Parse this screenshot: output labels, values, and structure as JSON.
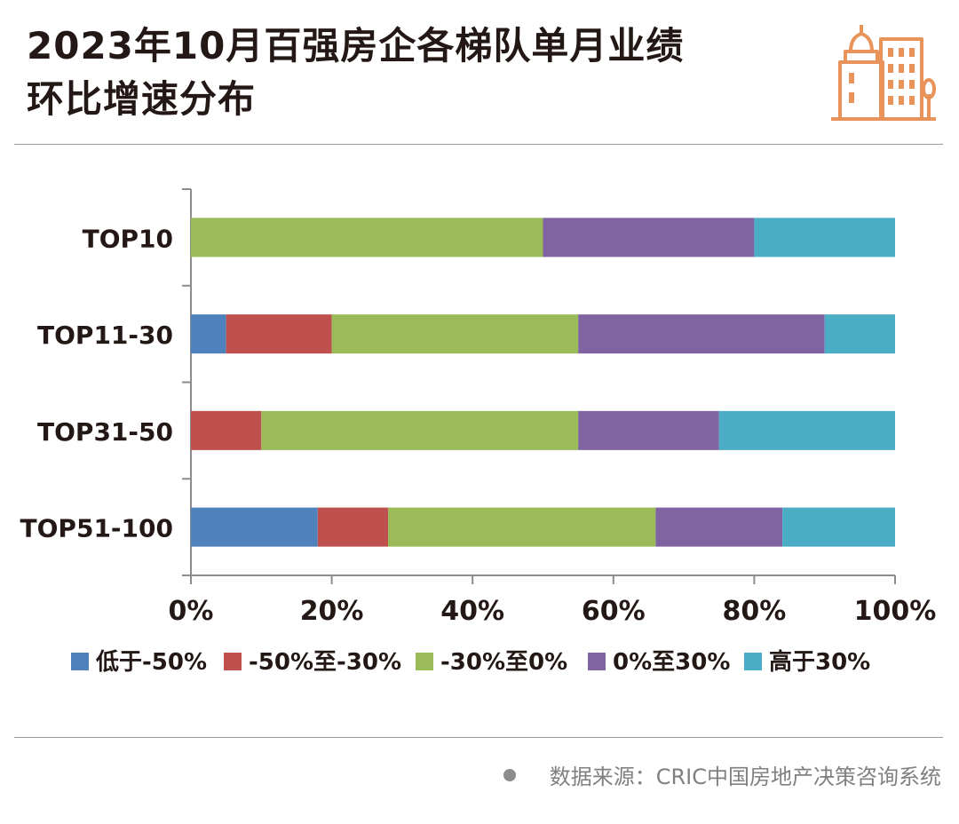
{
  "header": {
    "title_line1": "2023年10月百强房企各梯队单月业绩",
    "title_line2": "环比增速分布",
    "logo_icon": "buildings-icon"
  },
  "footer": {
    "source": "数据来源：CRIC中国房地产决策咨询系统"
  },
  "chart_data": {
    "type": "bar",
    "orientation": "horizontal",
    "stacked": true,
    "title": "2023年10月百强房企各梯队单月业绩环比增速分布",
    "categories": [
      "TOP10",
      "TOP11-30",
      "TOP31-50",
      "TOP51-100"
    ],
    "series": [
      {
        "name": "低于-50%",
        "color": "#4f81bd",
        "values": [
          0,
          5,
          0,
          18
        ]
      },
      {
        "name": "-50%至-30%",
        "color": "#c0504d",
        "values": [
          0,
          15,
          10,
          10
        ]
      },
      {
        "name": "-30%至0%",
        "color": "#9bbb59",
        "values": [
          50,
          35,
          45,
          38
        ]
      },
      {
        "name": "0%至30%",
        "color": "#8064a2",
        "values": [
          30,
          35,
          20,
          18
        ]
      },
      {
        "name": "高于30%",
        "color": "#4bacc6",
        "values": [
          20,
          10,
          25,
          16
        ]
      }
    ],
    "xlim": [
      0,
      100
    ],
    "x_ticks": [
      "0%",
      "20%",
      "40%",
      "60%",
      "80%",
      "100%"
    ],
    "grid": false,
    "legend_position": "bottom"
  }
}
